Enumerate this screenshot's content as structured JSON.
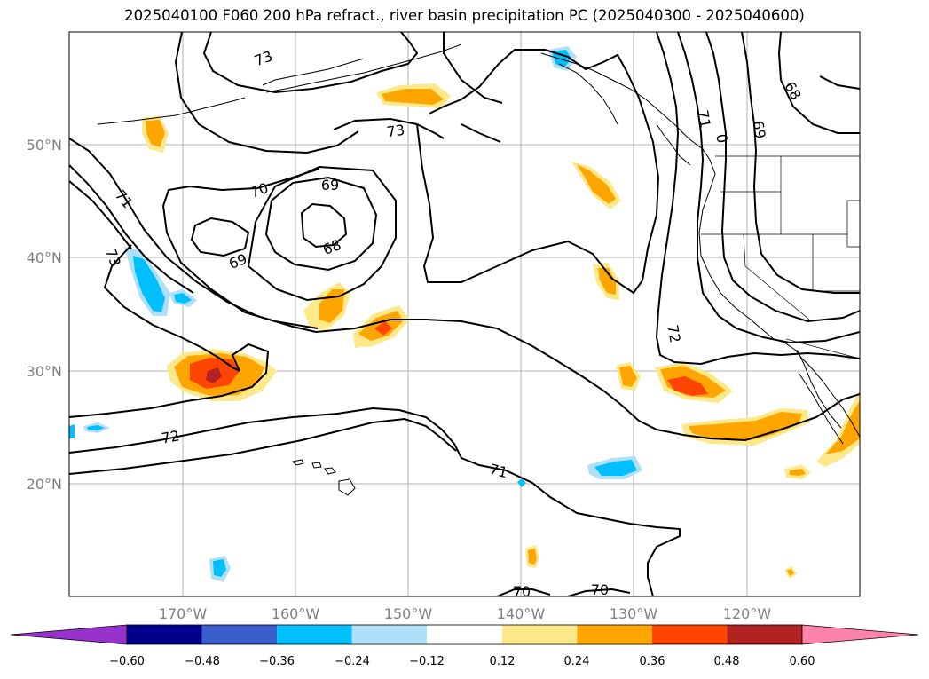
{
  "title": "2025040100 F060 200 hPa refract., river basin precipitation PC (2025040300 - 2025040600)",
  "axes": {
    "lat_ticks": [
      "50°N",
      "40°N",
      "30°N",
      "20°N"
    ],
    "lon_ticks": [
      "170°W",
      "160°W",
      "150°W",
      "140°W",
      "130°W",
      "120°W"
    ],
    "grid": true
  },
  "contour_labels": [
    "73",
    "73",
    "71",
    "73",
    "70",
    "69",
    "68",
    "69",
    "72",
    "71",
    "70",
    "70",
    "72",
    "71",
    "69",
    "68",
    "0"
  ],
  "colorbar": {
    "ticks": [
      "−0.60",
      "−0.48",
      "−0.36",
      "−0.24",
      "−0.12",
      "0.12",
      "0.24",
      "0.36",
      "0.48",
      "0.60"
    ],
    "colors": [
      "#9932cc",
      "#00008b",
      "#3a5fcd",
      "#00bfff",
      "#b0e0f8",
      "#ffffff",
      "#fde88a",
      "#ffa500",
      "#ff4500",
      "#b22222",
      "#ff82ab"
    ],
    "extend": "both"
  },
  "fill_colors": {
    "blue_light": "#b0e0f8",
    "blue": "#00bfff",
    "yellow": "#fde88a",
    "orange": "#ffa500",
    "red_orange": "#ff4500",
    "dark_red": "#b22222"
  }
}
